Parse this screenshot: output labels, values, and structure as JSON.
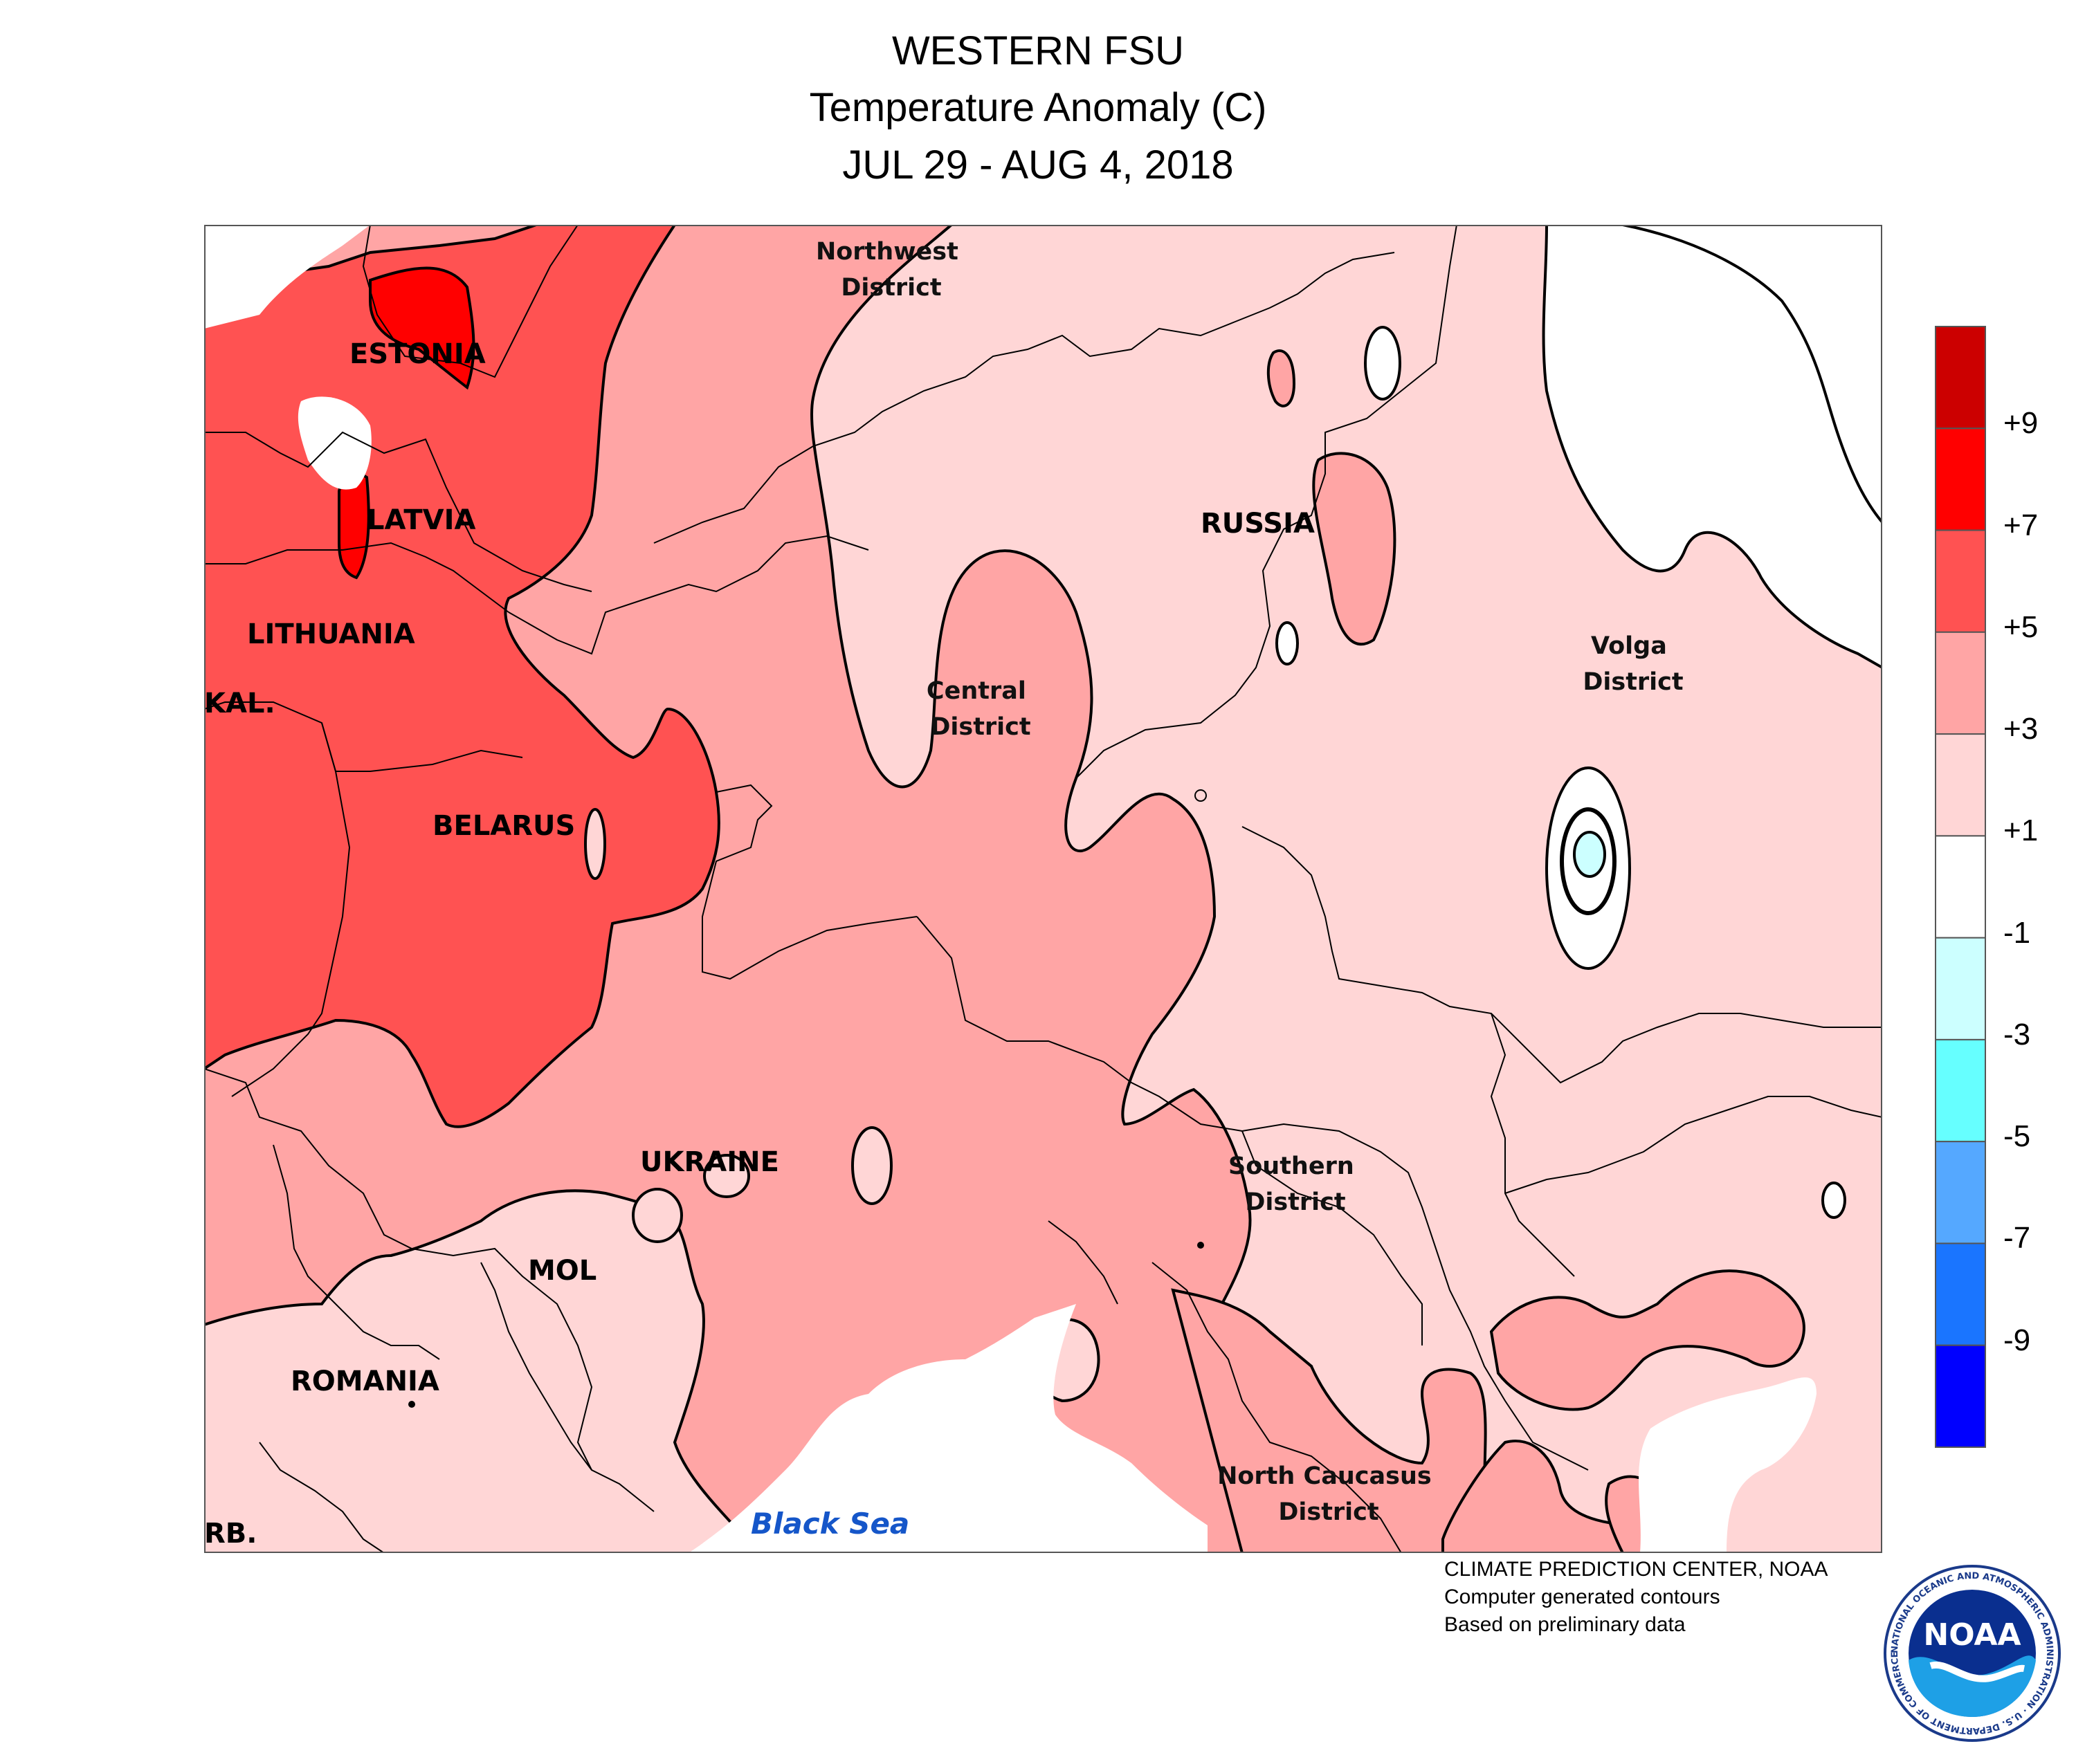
{
  "header": {
    "line1": "WESTERN FSU",
    "line2": "Temperature Anomaly (C)",
    "line3": "JUL 29 - AUG 4, 2018"
  },
  "map": {
    "countries": {
      "estonia": "ESTONIA",
      "latvia": "LATVIA",
      "lithuania": "LITHUANIA",
      "kaliningrad": "KAL.",
      "belarus": "BELARUS",
      "ukraine": "UKRAINE",
      "moldova": "MOL",
      "romania": "ROMANIA",
      "serbia": "RB.",
      "russia": "RUSSIA"
    },
    "districts": {
      "northwest": [
        "Northwest",
        "District"
      ],
      "central": [
        "Central",
        "District"
      ],
      "volga": [
        "Volga",
        "District"
      ],
      "southern": [
        "Southern",
        "District"
      ],
      "north_caucasus": [
        "North Caucasus",
        "District"
      ]
    },
    "sea": "Black Sea"
  },
  "legend": {
    "unit": "C",
    "colors": [
      "#cc0000",
      "#ff0000",
      "#ff5252",
      "#ffa5a5",
      "#ffd6d6",
      "#ffffff",
      "#ccffff",
      "#66ffff",
      "#55a8ff",
      "#1a75ff",
      "#0000ff"
    ],
    "boundaries": [
      9,
      7,
      5,
      3,
      1,
      -1,
      -3,
      -5,
      -7,
      -9
    ],
    "labels": [
      "+9",
      "+7",
      "+5",
      "+3",
      "+1",
      "-1",
      "-3",
      "-5",
      "-7",
      "-9"
    ]
  },
  "credits": {
    "line1": "CLIMATE PREDICTION CENTER, NOAA",
    "line2": "Computer generated contours",
    "line3": "Based on preliminary data"
  },
  "logo": {
    "text": "NOAA",
    "ring_text": "NATIONAL OCEANIC AND ATMOSPHERIC ADMINISTRATION · U.S. DEPARTMENT OF COMMERCE"
  }
}
